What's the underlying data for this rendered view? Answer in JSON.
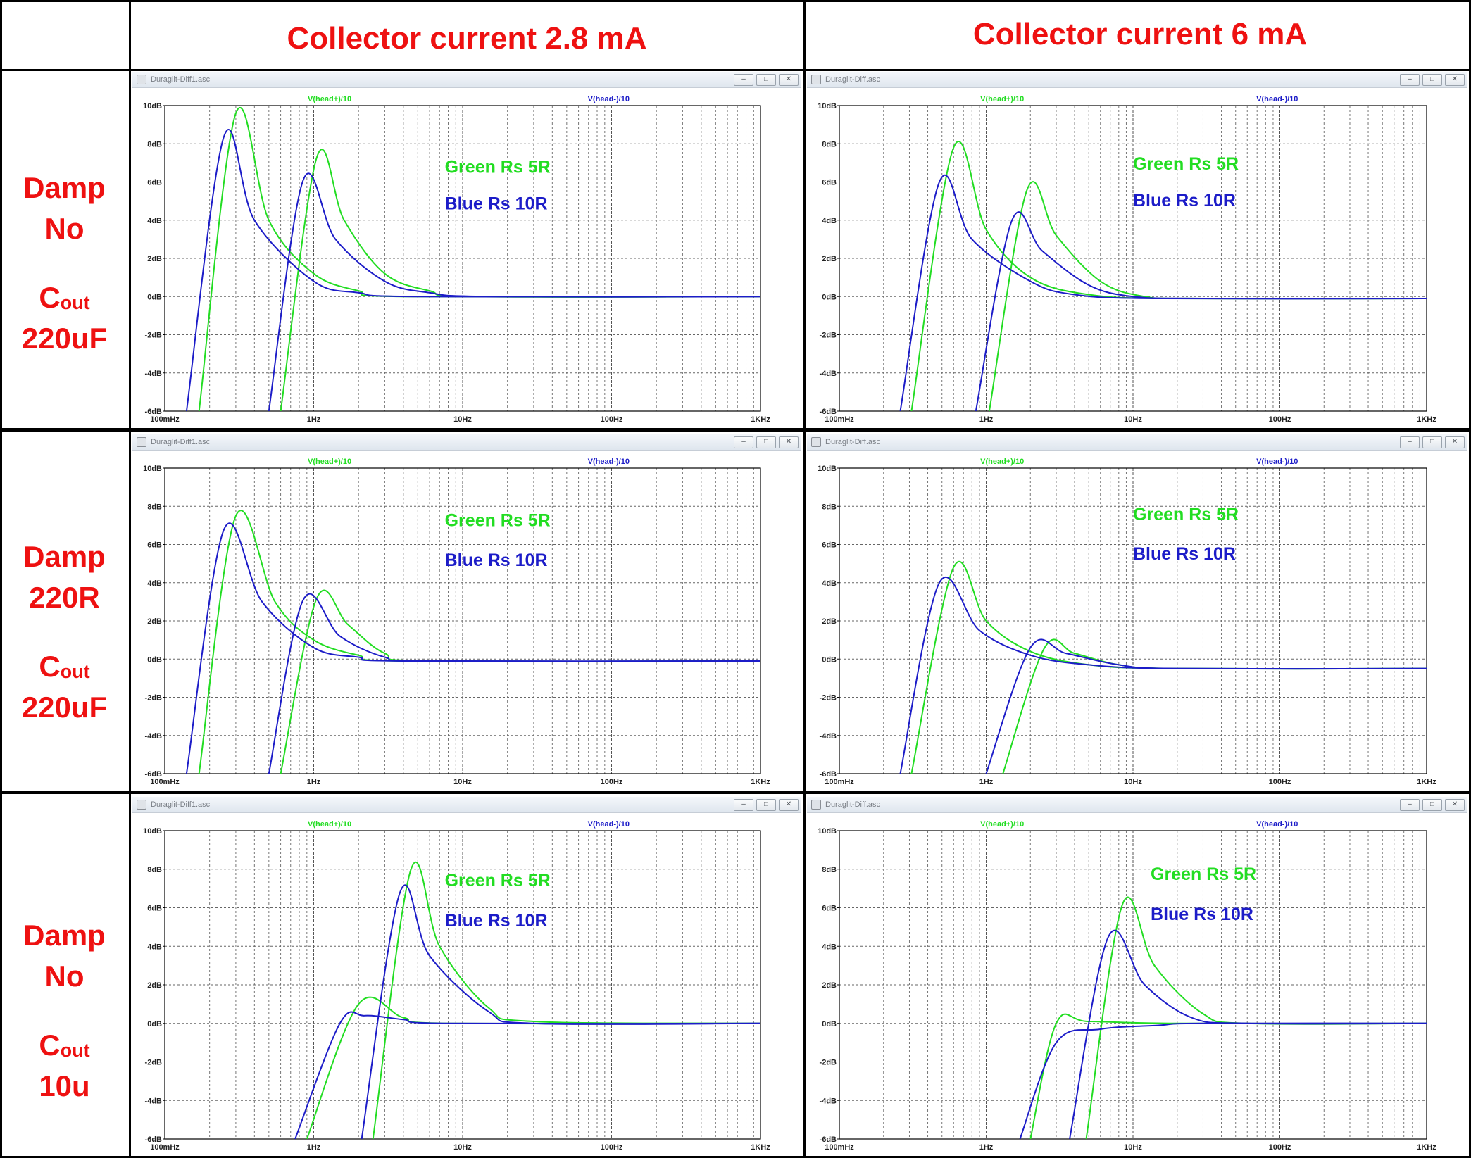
{
  "header": {
    "col1": "Collector current 2.8 mA",
    "col2": "Collector current 6 mA"
  },
  "rows": [
    {
      "damp_label": "Damp",
      "damp_value": "No",
      "cout_main": "C",
      "cout_sub": "out",
      "cout_value": "220uF"
    },
    {
      "damp_label": "Damp",
      "damp_value": "220R",
      "cout_main": "C",
      "cout_sub": "out",
      "cout_value": "220uF"
    },
    {
      "damp_label": "Damp",
      "damp_value": "No",
      "cout_main": "C",
      "cout_sub": "out",
      "cout_value": "10u"
    }
  ],
  "colors": {
    "label_red": "#ee1111",
    "green": "#22dd22",
    "blue": "#1c1cc8"
  },
  "chart_data": [
    {
      "type": "line",
      "window_title": "Duraglit-Diff1.asc",
      "trace_labels": [
        "V(head+)/10",
        "V(head-)/10"
      ],
      "annotations": [
        "Green Rs 5R",
        "Blue Rs 10R"
      ],
      "xscale": "log",
      "xlim": [
        0.1,
        1000
      ],
      "ylim": [
        -6,
        10
      ],
      "grid": true,
      "x_ticks": [
        "100mHz",
        "1Hz",
        "10Hz",
        "100Hz",
        "1KHz"
      ],
      "y_ticks": [
        "10dB",
        "8dB",
        "6dB",
        "4dB",
        "2dB",
        "0dB",
        "-2dB",
        "-4dB",
        "-6dB"
      ],
      "series": [
        {
          "color": "green",
          "points": [
            [
              0.17,
              -6
            ],
            [
              0.3,
              9.6
            ],
            [
              0.5,
              4
            ],
            [
              1,
              1.2
            ],
            [
              2,
              0.3
            ],
            [
              4,
              0
            ],
            [
              1000,
              0
            ]
          ]
        },
        {
          "color": "green",
          "points": [
            [
              0.6,
              -6
            ],
            [
              1.05,
              7.3
            ],
            [
              1.6,
              4
            ],
            [
              3,
              1.2
            ],
            [
              6,
              0.3
            ],
            [
              12,
              0
            ],
            [
              1000,
              0
            ]
          ]
        },
        {
          "color": "blue",
          "points": [
            [
              0.14,
              -6
            ],
            [
              0.25,
              8.4
            ],
            [
              0.4,
              4
            ],
            [
              1,
              0.8
            ],
            [
              2,
              0.2
            ],
            [
              5,
              0
            ],
            [
              1000,
              0
            ]
          ]
        },
        {
          "color": "blue",
          "points": [
            [
              0.5,
              -6
            ],
            [
              0.85,
              6.1
            ],
            [
              1.4,
              3
            ],
            [
              3,
              0.8
            ],
            [
              6,
              0.2
            ],
            [
              15,
              0
            ],
            [
              1000,
              0
            ]
          ]
        }
      ]
    },
    {
      "type": "line",
      "window_title": "Duraglit-Diff.asc",
      "trace_labels": [
        "V(head+)/10",
        "V(head-)/10"
      ],
      "annotations": [
        "Green Rs 5R",
        "Blue Rs 10R"
      ],
      "xscale": "log",
      "xlim": [
        0.1,
        1000
      ],
      "ylim": [
        -6,
        10
      ],
      "grid": true,
      "x_ticks": [
        "100mHz",
        "1Hz",
        "10Hz",
        "100Hz",
        "1KHz"
      ],
      "y_ticks": [
        "10dB",
        "8dB",
        "6dB",
        "4dB",
        "2dB",
        "0dB",
        "-2dB",
        "-4dB",
        "-6dB"
      ],
      "series": [
        {
          "color": "green",
          "points": [
            [
              0.31,
              -6
            ],
            [
              0.6,
              7.8
            ],
            [
              1,
              3.5
            ],
            [
              2,
              1
            ],
            [
              5,
              0.1
            ],
            [
              20,
              -0.1
            ],
            [
              1000,
              -0.1
            ]
          ]
        },
        {
          "color": "green",
          "points": [
            [
              1.05,
              -6
            ],
            [
              1.9,
              5.6
            ],
            [
              3,
              3.2
            ],
            [
              6,
              0.8
            ],
            [
              12,
              0
            ],
            [
              30,
              -0.1
            ],
            [
              1000,
              -0.1
            ]
          ]
        },
        {
          "color": "blue",
          "points": [
            [
              0.26,
              -6
            ],
            [
              0.48,
              6
            ],
            [
              0.8,
              3
            ],
            [
              2,
              0.8
            ],
            [
              4,
              0.1
            ],
            [
              15,
              -0.1
            ],
            [
              1000,
              -0.1
            ]
          ]
        },
        {
          "color": "blue",
          "points": [
            [
              0.85,
              -6
            ],
            [
              1.5,
              4
            ],
            [
              2.4,
              2.4
            ],
            [
              5,
              0.6
            ],
            [
              10,
              0
            ],
            [
              30,
              -0.1
            ],
            [
              1000,
              -0.1
            ]
          ]
        }
      ]
    },
    {
      "type": "line",
      "window_title": "Duraglit-Diff1.asc",
      "trace_labels": [
        "V(head+)/10",
        "V(head-)/10"
      ],
      "annotations": [
        "Green Rs 5R",
        "Blue Rs 10R"
      ],
      "xscale": "log",
      "xlim": [
        0.1,
        1000
      ],
      "ylim": [
        -6,
        10
      ],
      "grid": true,
      "x_ticks": [
        "100mHz",
        "1Hz",
        "10Hz",
        "100Hz",
        "1KHz"
      ],
      "y_ticks": [
        "10dB",
        "8dB",
        "6dB",
        "4dB",
        "2dB",
        "0dB",
        "-2dB",
        "-4dB",
        "-6dB"
      ],
      "series": [
        {
          "color": "green",
          "points": [
            [
              0.17,
              -6
            ],
            [
              0.3,
              7.5
            ],
            [
              0.55,
              3
            ],
            [
              1,
              1
            ],
            [
              2,
              0.2
            ],
            [
              4,
              -0.1
            ],
            [
              1000,
              -0.1
            ]
          ]
        },
        {
          "color": "green",
          "points": [
            [
              0.6,
              -6
            ],
            [
              1.05,
              3.2
            ],
            [
              1.7,
              1.8
            ],
            [
              3,
              0.3
            ],
            [
              6,
              -0.1
            ],
            [
              1000,
              -0.1
            ]
          ]
        },
        {
          "color": "blue",
          "points": [
            [
              0.14,
              -6
            ],
            [
              0.25,
              6.8
            ],
            [
              0.45,
              3
            ],
            [
              1,
              0.6
            ],
            [
              2,
              0.1
            ],
            [
              4,
              -0.1
            ],
            [
              1000,
              -0.1
            ]
          ]
        },
        {
          "color": "blue",
          "points": [
            [
              0.5,
              -6
            ],
            [
              0.85,
              3.1
            ],
            [
              1.5,
              1.2
            ],
            [
              3,
              0.1
            ],
            [
              6,
              -0.1
            ],
            [
              1000,
              -0.1
            ]
          ]
        }
      ]
    },
    {
      "type": "line",
      "window_title": "Duraglit-Diff.asc",
      "trace_labels": [
        "V(head+)/10",
        "V(head-)/10"
      ],
      "annotations": [
        "Green Rs 5R",
        "Blue Rs 10R"
      ],
      "xscale": "log",
      "xlim": [
        0.1,
        1000
      ],
      "ylim": [
        -6,
        10
      ],
      "grid": true,
      "x_ticks": [
        "100mHz",
        "1Hz",
        "10Hz",
        "100Hz",
        "1KHz"
      ],
      "y_ticks": [
        "10dB",
        "8dB",
        "6dB",
        "4dB",
        "2dB",
        "0dB",
        "-2dB",
        "-4dB",
        "-6dB"
      ],
      "series": [
        {
          "color": "green",
          "points": [
            [
              0.31,
              -6
            ],
            [
              0.6,
              4.8
            ],
            [
              1,
              2
            ],
            [
              2,
              0.4
            ],
            [
              5,
              -0.3
            ],
            [
              20,
              -0.5
            ],
            [
              1000,
              -0.5
            ]
          ]
        },
        {
          "color": "green",
          "points": [
            [
              1.3,
              -6
            ],
            [
              2.5,
              0.6
            ],
            [
              4,
              0.3
            ],
            [
              8,
              -0.3
            ],
            [
              20,
              -0.5
            ],
            [
              1000,
              -0.5
            ]
          ]
        },
        {
          "color": "blue",
          "points": [
            [
              0.26,
              -6
            ],
            [
              0.48,
              4
            ],
            [
              0.9,
              1.5
            ],
            [
              2,
              0.2
            ],
            [
              5,
              -0.3
            ],
            [
              20,
              -0.5
            ],
            [
              1000,
              -0.5
            ]
          ]
        },
        {
          "color": "blue",
          "points": [
            [
              1,
              -6
            ],
            [
              2,
              0.6
            ],
            [
              3.5,
              0.3
            ],
            [
              8,
              -0.3
            ],
            [
              20,
              -0.5
            ],
            [
              1000,
              -0.5
            ]
          ]
        }
      ]
    },
    {
      "type": "line",
      "window_title": "Duraglit-Diff1.asc",
      "trace_labels": [
        "V(head+)/10",
        "V(head-)/10"
      ],
      "annotations": [
        "Green Rs 5R",
        "Blue Rs 10R"
      ],
      "xscale": "log",
      "xlim": [
        0.1,
        1000
      ],
      "ylim": [
        -6,
        10
      ],
      "grid": true,
      "x_ticks": [
        "100mHz",
        "1Hz",
        "10Hz",
        "100Hz",
        "1KHz"
      ],
      "y_ticks": [
        "10dB",
        "8dB",
        "6dB",
        "4dB",
        "2dB",
        "0dB",
        "-2dB",
        "-4dB",
        "-6dB"
      ],
      "series": [
        {
          "color": "green",
          "points": [
            [
              0.9,
              -6
            ],
            [
              2,
              1
            ],
            [
              4,
              0.3
            ],
            [
              8,
              0
            ],
            [
              1000,
              0
            ]
          ]
        },
        {
          "color": "green",
          "points": [
            [
              2.5,
              -6
            ],
            [
              4.5,
              8
            ],
            [
              7,
              4
            ],
            [
              15,
              0.8
            ],
            [
              30,
              0.1
            ],
            [
              1000,
              0
            ]
          ]
        },
        {
          "color": "blue",
          "points": [
            [
              0.75,
              -6
            ],
            [
              1.5,
              0
            ],
            [
              2.2,
              0.4
            ],
            [
              4,
              0.2
            ],
            [
              8,
              0
            ],
            [
              1000,
              0
            ]
          ]
        },
        {
          "color": "blue",
          "points": [
            [
              2.1,
              -6
            ],
            [
              3.8,
              6.8
            ],
            [
              6,
              3.5
            ],
            [
              15,
              0.6
            ],
            [
              30,
              0
            ],
            [
              1000,
              0
            ]
          ]
        }
      ]
    },
    {
      "type": "line",
      "window_title": "Duraglit-Diff.asc",
      "trace_labels": [
        "V(head+)/10",
        "V(head-)/10"
      ],
      "annotations": [
        "Green Rs 5R",
        "Blue Rs 10R"
      ],
      "xscale": "log",
      "xlim": [
        0.1,
        1000
      ],
      "ylim": [
        -6,
        10
      ],
      "grid": true,
      "x_ticks": [
        "100mHz",
        "1Hz",
        "10Hz",
        "100Hz",
        "1KHz"
      ],
      "y_ticks": [
        "10dB",
        "8dB",
        "6dB",
        "4dB",
        "2dB",
        "0dB",
        "-2dB",
        "-4dB",
        "-6dB"
      ],
      "series": [
        {
          "color": "green",
          "points": [
            [
              2,
              -6
            ],
            [
              3,
              0
            ],
            [
              5,
              0.1
            ],
            [
              20,
              0
            ],
            [
              1000,
              0
            ]
          ]
        },
        {
          "color": "green",
          "points": [
            [
              4.8,
              -6
            ],
            [
              8.5,
              6.2
            ],
            [
              14,
              3
            ],
            [
              30,
              0.5
            ],
            [
              60,
              0
            ],
            [
              1000,
              0
            ]
          ]
        },
        {
          "color": "blue",
          "points": [
            [
              1.7,
              -6
            ],
            [
              3,
              -1
            ],
            [
              6,
              -0.3
            ],
            [
              15,
              -0.1
            ],
            [
              30,
              0
            ],
            [
              1000,
              0
            ]
          ]
        },
        {
          "color": "blue",
          "points": [
            [
              3.7,
              -6
            ],
            [
              6.8,
              4.5
            ],
            [
              12,
              2
            ],
            [
              25,
              0.3
            ],
            [
              60,
              0
            ],
            [
              1000,
              0
            ]
          ]
        }
      ]
    }
  ]
}
